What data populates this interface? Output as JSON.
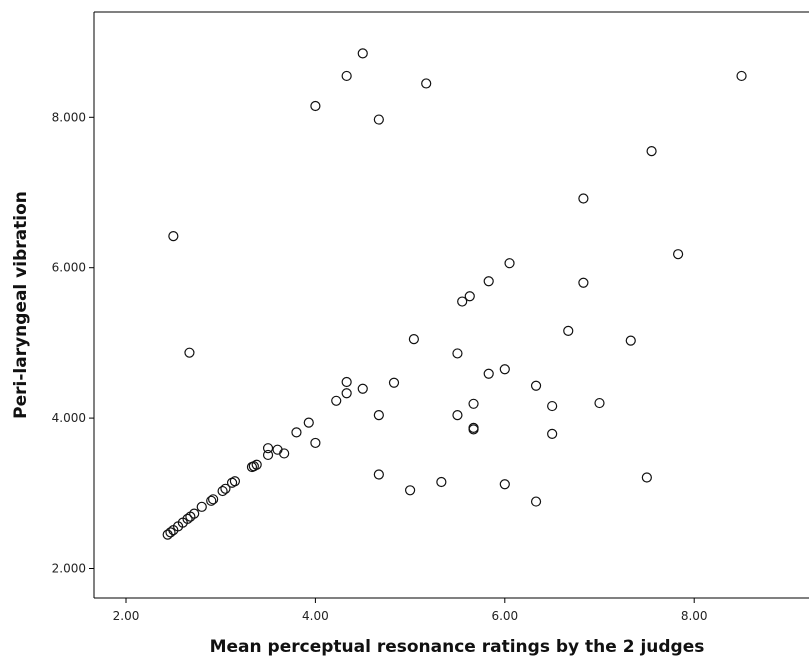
{
  "chart_data": {
    "type": "scatter",
    "title": "",
    "xlabel": "Mean perceptual resonance ratings by the 2 judges",
    "ylabel": "Peri-laryngeal vibration",
    "xlim": [
      1.0,
      10.0
    ],
    "ylim": [
      1.6,
      9.5
    ],
    "x_ticks": [
      2,
      4,
      6,
      8
    ],
    "x_tick_labels": [
      "2.00",
      "4.00",
      "6.00",
      "8.00"
    ],
    "y_ticks": [
      2,
      4,
      6,
      8
    ],
    "y_tick_labels": [
      "2.000",
      "4.000",
      "6.000",
      "8.000"
    ],
    "grid": false,
    "legend": "none",
    "marker": "open-circle",
    "series": [
      {
        "points": [
          [
            4.5,
            8.85
          ],
          [
            4.33,
            8.55
          ],
          [
            4.0,
            8.15
          ],
          [
            4.67,
            7.97
          ],
          [
            5.17,
            8.45
          ],
          [
            8.5,
            8.55
          ],
          [
            7.55,
            7.55
          ],
          [
            6.83,
            6.92
          ],
          [
            7.83,
            6.18
          ],
          [
            2.5,
            6.42
          ],
          [
            6.05,
            6.06
          ],
          [
            5.83,
            5.82
          ],
          [
            5.63,
            5.62
          ],
          [
            5.55,
            5.55
          ],
          [
            6.83,
            5.8
          ],
          [
            6.67,
            5.16
          ],
          [
            7.33,
            5.03
          ],
          [
            2.67,
            4.87
          ],
          [
            5.04,
            5.05
          ],
          [
            5.5,
            4.86
          ],
          [
            6.0,
            4.65
          ],
          [
            5.83,
            4.59
          ],
          [
            4.33,
            4.48
          ],
          [
            4.83,
            4.47
          ],
          [
            4.5,
            4.39
          ],
          [
            4.33,
            4.33
          ],
          [
            4.22,
            4.23
          ],
          [
            6.33,
            4.43
          ],
          [
            5.67,
            4.19
          ],
          [
            6.5,
            4.16
          ],
          [
            7.0,
            4.2
          ],
          [
            4.67,
            4.04
          ],
          [
            5.5,
            4.04
          ],
          [
            3.93,
            3.94
          ],
          [
            3.8,
            3.81
          ],
          [
            5.67,
            3.87
          ],
          [
            5.67,
            3.85
          ],
          [
            6.5,
            3.79
          ],
          [
            4.0,
            3.67
          ],
          [
            3.5,
            3.6
          ],
          [
            3.6,
            3.58
          ],
          [
            3.67,
            3.53
          ],
          [
            3.5,
            3.51
          ],
          [
            3.38,
            3.38
          ],
          [
            3.35,
            3.36
          ],
          [
            3.33,
            3.35
          ],
          [
            4.67,
            3.25
          ],
          [
            7.5,
            3.21
          ],
          [
            5.33,
            3.15
          ],
          [
            6.0,
            3.12
          ],
          [
            5.0,
            3.04
          ],
          [
            6.33,
            2.89
          ],
          [
            3.15,
            3.16
          ],
          [
            3.12,
            3.14
          ],
          [
            3.05,
            3.06
          ],
          [
            3.02,
            3.03
          ],
          [
            2.92,
            2.92
          ],
          [
            2.9,
            2.9
          ],
          [
            2.8,
            2.82
          ],
          [
            2.72,
            2.73
          ],
          [
            2.68,
            2.69
          ],
          [
            2.65,
            2.66
          ],
          [
            2.6,
            2.61
          ],
          [
            2.55,
            2.56
          ],
          [
            2.5,
            2.51
          ],
          [
            2.47,
            2.48
          ],
          [
            2.44,
            2.45
          ]
        ]
      }
    ]
  }
}
